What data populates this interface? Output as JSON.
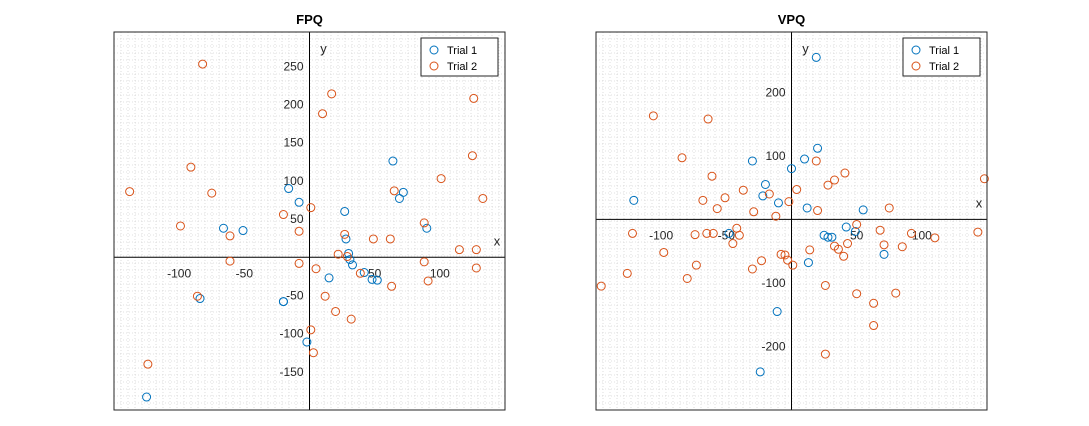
{
  "chart_data": [
    {
      "type": "scatter",
      "title": "FPQ",
      "xlabel": "x",
      "ylabel": "y",
      "xlim": [
        -150,
        150
      ],
      "ylim": [
        -200,
        295
      ],
      "xticks": [
        -100,
        -50,
        50,
        100
      ],
      "yticks": [
        -150,
        -100,
        -50,
        50,
        100,
        150,
        200,
        250
      ],
      "grid": "dotted minor",
      "legend": "top-right",
      "series": [
        {
          "name": "Trial 1",
          "color": "#0072BD",
          "points": [
            [
              -125,
              -183
            ],
            [
              -84,
              -54
            ],
            [
              -66,
              38
            ],
            [
              -51,
              35
            ],
            [
              -20,
              -58
            ],
            [
              -16,
              90
            ],
            [
              -8,
              72
            ],
            [
              -2,
              -111
            ],
            [
              27,
              60
            ],
            [
              28,
              24
            ],
            [
              30,
              5
            ],
            [
              31,
              -3
            ],
            [
              33,
              -10
            ],
            [
              52,
              -30
            ],
            [
              42,
              -20
            ],
            [
              64,
              126
            ],
            [
              69,
              77
            ],
            [
              72,
              85
            ],
            [
              90,
              38
            ],
            [
              -20,
              -58
            ],
            [
              15,
              -27
            ],
            [
              48,
              -29
            ]
          ]
        },
        {
          "name": "Trial 2",
          "color": "#D95319",
          "points": [
            [
              -138,
              86
            ],
            [
              -124,
              -140
            ],
            [
              -99,
              41
            ],
            [
              -91,
              118
            ],
            [
              -86,
              -51
            ],
            [
              -82,
              253
            ],
            [
              -75,
              84
            ],
            [
              -61,
              28
            ],
            [
              -61,
              -5
            ],
            [
              -20,
              56
            ],
            [
              -8,
              34
            ],
            [
              -8,
              -8
            ],
            [
              1,
              65
            ],
            [
              1,
              -95
            ],
            [
              3,
              -125
            ],
            [
              5,
              -15
            ],
            [
              10,
              188
            ],
            [
              12,
              -51
            ],
            [
              17,
              214
            ],
            [
              20,
              -71
            ],
            [
              22,
              4
            ],
            [
              27,
              30
            ],
            [
              29,
              1
            ],
            [
              32,
              -81
            ],
            [
              39,
              -21
            ],
            [
              49,
              24
            ],
            [
              62,
              24
            ],
            [
              63,
              -38
            ],
            [
              65,
              87
            ],
            [
              88,
              -6
            ],
            [
              88,
              45
            ],
            [
              91,
              -31
            ],
            [
              101,
              103
            ],
            [
              115,
              10
            ],
            [
              126,
              208
            ],
            [
              125,
              133
            ],
            [
              128,
              10
            ],
            [
              128,
              -14
            ],
            [
              133,
              77
            ]
          ]
        }
      ]
    },
    {
      "type": "scatter",
      "title": "VPQ",
      "xlabel": "x",
      "ylabel": "y",
      "xlim": [
        -150,
        150
      ],
      "ylim": [
        -300,
        295
      ],
      "xticks": [
        -100,
        -50,
        50,
        100
      ],
      "yticks": [
        -200,
        -100,
        100,
        200
      ],
      "grid": "dotted minor",
      "legend": "top-right",
      "series": [
        {
          "name": "Trial 1",
          "color": "#0072BD",
          "points": [
            [
              -121,
              30
            ],
            [
              -48,
              -22
            ],
            [
              -30,
              92
            ],
            [
              -22,
              37
            ],
            [
              -20,
              55
            ],
            [
              -24,
              -240
            ],
            [
              -11,
              -145
            ],
            [
              -10,
              26
            ],
            [
              0,
              80
            ],
            [
              10,
              95
            ],
            [
              12,
              18
            ],
            [
              13,
              -68
            ],
            [
              19,
              255
            ],
            [
              20,
              112
            ],
            [
              25,
              -25
            ],
            [
              28,
              -28
            ],
            [
              31,
              -28
            ],
            [
              42,
              -12
            ],
            [
              49,
              -19
            ],
            [
              55,
              15
            ],
            [
              71,
              -55
            ]
          ]
        },
        {
          "name": "Trial 2",
          "color": "#D95319",
          "points": [
            [
              -146,
              -105
            ],
            [
              -126,
              -85
            ],
            [
              -122,
              -22
            ],
            [
              -106,
              163
            ],
            [
              -98,
              -52
            ],
            [
              -84,
              97
            ],
            [
              -80,
              -93
            ],
            [
              -74,
              -24
            ],
            [
              -73,
              -72
            ],
            [
              -68,
              30
            ],
            [
              -65,
              -22
            ],
            [
              -64,
              158
            ],
            [
              -61,
              68
            ],
            [
              -60,
              -22
            ],
            [
              -57,
              17
            ],
            [
              -51,
              34
            ],
            [
              -45,
              -38
            ],
            [
              -42,
              -14
            ],
            [
              -40,
              -25
            ],
            [
              -37,
              46
            ],
            [
              -30,
              -78
            ],
            [
              -29,
              12
            ],
            [
              -23,
              -65
            ],
            [
              -17,
              40
            ],
            [
              -12,
              5
            ],
            [
              -8,
              -55
            ],
            [
              -5,
              -56
            ],
            [
              -3,
              -64
            ],
            [
              -2,
              28
            ],
            [
              1,
              -72
            ],
            [
              4,
              47
            ],
            [
              14,
              -48
            ],
            [
              19,
              92
            ],
            [
              20,
              14
            ],
            [
              26,
              -212
            ],
            [
              26,
              -104
            ],
            [
              28,
              54
            ],
            [
              33,
              62
            ],
            [
              33,
              -42
            ],
            [
              36,
              -47
            ],
            [
              40,
              -58
            ],
            [
              41,
              73
            ],
            [
              43,
              -38
            ],
            [
              50,
              -8
            ],
            [
              50,
              -117
            ],
            [
              63,
              -132
            ],
            [
              63,
              -167
            ],
            [
              68,
              -17
            ],
            [
              71,
              -40
            ],
            [
              75,
              18
            ],
            [
              80,
              -116
            ],
            [
              85,
              -43
            ],
            [
              92,
              -22
            ],
            [
              110,
              -29
            ],
            [
              143,
              -20
            ],
            [
              148,
              64
            ]
          ]
        }
      ]
    }
  ]
}
